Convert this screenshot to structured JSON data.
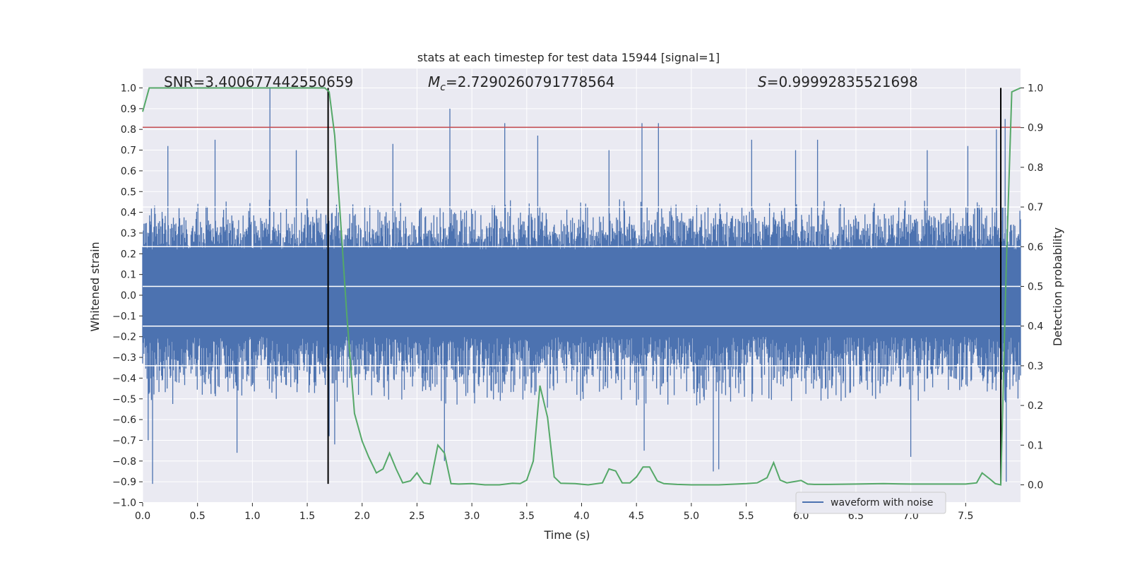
{
  "chart_data": {
    "type": "line",
    "title": "stats at each timestep for test data 15944 [signal=1]",
    "xlabel": "Time (s)",
    "ylabel": "Whitened strain",
    "y2label": "Detection probability",
    "xlim": [
      0,
      8
    ],
    "ylim": [
      -1.0,
      1.0
    ],
    "y2lim": [
      0.0,
      1.0
    ],
    "x_ticks": [
      "0.0",
      "0.5",
      "1.0",
      "1.5",
      "2.0",
      "2.5",
      "3.0",
      "3.5",
      "4.0",
      "4.5",
      "5.0",
      "5.5",
      "6.0",
      "6.5",
      "7.0",
      "7.5"
    ],
    "y_ticks": [
      "-1.0",
      "-0.9",
      "-0.8",
      "-0.7",
      "-0.6",
      "-0.5",
      "-0.4",
      "-0.3",
      "-0.2",
      "-0.1",
      "0.0",
      "0.1",
      "0.2",
      "0.3",
      "0.4",
      "0.5",
      "0.6",
      "0.7",
      "0.8",
      "0.9",
      "1.0"
    ],
    "y2_ticks": [
      "0.0",
      "0.1",
      "0.2",
      "0.3",
      "0.4",
      "0.5",
      "0.6",
      "0.7",
      "0.8",
      "0.9",
      "1.0"
    ],
    "grid": true,
    "legend_position": "lower right",
    "annotations": {
      "snr": "SNR=3.400677442550659",
      "mc_symbol": "M",
      "mc_sub": "c",
      "mc_value": "=2.7290260791778564",
      "s_symbol": "S",
      "s_value": "=0.99992835521698"
    },
    "threshold_line": {
      "y": 0.81,
      "color": "#c44e52"
    },
    "vertical_lines": [
      {
        "x": 1.69,
        "y_range": [
          -0.91,
          1.0
        ]
      },
      {
        "x": 7.82,
        "y_range": [
          -0.91,
          1.0
        ]
      }
    ],
    "series": [
      {
        "name": "waveform with noise",
        "color": "#4c72b0",
        "envelope": {
          "core_band": [
            -0.2,
            0.22
          ],
          "typical_band": [
            -0.45,
            0.4
          ],
          "peaks": [
            {
              "x": 0.05,
              "y": -0.7
            },
            {
              "x": 0.09,
              "y": -0.91
            },
            {
              "x": 0.23,
              "y": 0.72
            },
            {
              "x": 0.66,
              "y": 0.75
            },
            {
              "x": 0.86,
              "y": -0.76
            },
            {
              "x": 1.16,
              "y": 1.0
            },
            {
              "x": 1.16,
              "y": 0.76
            },
            {
              "x": 1.4,
              "y": 0.7
            },
            {
              "x": 1.7,
              "y": -0.68
            },
            {
              "x": 1.75,
              "y": -0.72
            },
            {
              "x": 2.28,
              "y": 0.73
            },
            {
              "x": 2.8,
              "y": 0.9
            },
            {
              "x": 2.75,
              "y": -0.8
            },
            {
              "x": 3.3,
              "y": 0.83
            },
            {
              "x": 3.6,
              "y": 0.77
            },
            {
              "x": 4.25,
              "y": 0.7
            },
            {
              "x": 4.55,
              "y": 0.83
            },
            {
              "x": 4.57,
              "y": -0.75
            },
            {
              "x": 4.7,
              "y": 0.83
            },
            {
              "x": 5.2,
              "y": -0.85
            },
            {
              "x": 5.25,
              "y": -0.84
            },
            {
              "x": 5.55,
              "y": 0.75
            },
            {
              "x": 5.95,
              "y": 0.7
            },
            {
              "x": 6.15,
              "y": 0.75
            },
            {
              "x": 7.0,
              "y": -0.78
            },
            {
              "x": 7.15,
              "y": 0.7
            },
            {
              "x": 7.52,
              "y": 0.72
            },
            {
              "x": 7.78,
              "y": 0.8
            },
            {
              "x": 7.86,
              "y": 0.85
            },
            {
              "x": 7.87,
              "y": -0.9
            }
          ]
        }
      },
      {
        "name": "",
        "color": "#55a868",
        "axis": "right",
        "x": [
          0.0,
          0.06,
          0.5,
          1.0,
          1.5,
          1.62,
          1.66,
          1.7,
          1.75,
          1.8,
          1.86,
          1.93,
          2.0,
          2.06,
          2.13,
          2.19,
          2.25,
          2.31,
          2.37,
          2.44,
          2.5,
          2.56,
          2.62,
          2.69,
          2.75,
          2.81,
          2.88,
          3.0,
          3.12,
          3.25,
          3.37,
          3.44,
          3.5,
          3.56,
          3.62,
          3.69,
          3.75,
          3.81,
          3.94,
          4.06,
          4.19,
          4.25,
          4.31,
          4.37,
          4.44,
          4.5,
          4.56,
          4.62,
          4.69,
          4.75,
          4.87,
          5.0,
          5.25,
          5.5,
          5.6,
          5.69,
          5.75,
          5.81,
          5.87,
          6.0,
          6.06,
          6.12,
          6.25,
          6.5,
          6.75,
          7.0,
          7.25,
          7.5,
          7.6,
          7.65,
          7.72,
          7.77,
          7.82,
          7.87,
          7.92,
          8.0
        ],
        "values": [
          0.94,
          1.0,
          1.0,
          1.0,
          1.0,
          1.0,
          1.0,
          0.99,
          0.88,
          0.68,
          0.43,
          0.18,
          0.11,
          0.07,
          0.03,
          0.04,
          0.08,
          0.04,
          0.005,
          0.01,
          0.03,
          0.005,
          0.002,
          0.1,
          0.08,
          0.003,
          0.002,
          0.003,
          0.0,
          0.0,
          0.004,
          0.003,
          0.012,
          0.06,
          0.25,
          0.17,
          0.02,
          0.004,
          0.003,
          0.0,
          0.005,
          0.04,
          0.035,
          0.005,
          0.005,
          0.02,
          0.045,
          0.045,
          0.01,
          0.003,
          0.001,
          0.0,
          0.0,
          0.003,
          0.005,
          0.018,
          0.056,
          0.012,
          0.005,
          0.011,
          0.002,
          0.001,
          0.001,
          0.002,
          0.003,
          0.002,
          0.002,
          0.002,
          0.005,
          0.03,
          0.015,
          0.003,
          0.0,
          0.55,
          0.99,
          1.0
        ]
      }
    ]
  }
}
